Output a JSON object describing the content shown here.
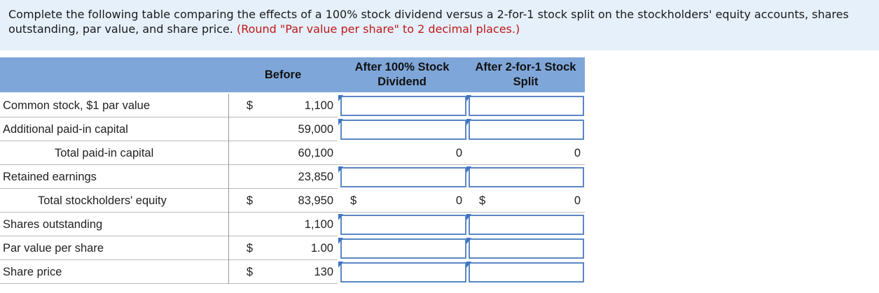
{
  "prompt": {
    "text": "Complete the following table comparing the effects of a 100% stock dividend versus a 2-for-1 stock split on the stockholders' equity accounts, shares outstanding, par value, and share price.",
    "note": "(Round \"Par value per share\" to 2 decimal places.)"
  },
  "table": {
    "headers": {
      "before": "Before",
      "stock_dividend": "After 100% Stock Dividend",
      "stock_split": "After 2-for-1 Stock Split"
    },
    "rows": [
      {
        "label": "Common stock, $1 par value",
        "dollar": "$",
        "before": "1,100"
      },
      {
        "label": "Additional paid-in capital",
        "dollar": "",
        "before": "59,000"
      },
      {
        "label": "Total paid-in capital",
        "dollar": "",
        "before": "60,100",
        "dividend_value": "0",
        "split_value": "0"
      },
      {
        "label": "Retained earnings",
        "dollar": "",
        "before": "23,850"
      },
      {
        "label": "Total stockholders' equity",
        "dollar": "$",
        "before": "83,950",
        "dividend_dollar": "$",
        "dividend_value": "0",
        "split_dollar": "$",
        "split_value": "0"
      },
      {
        "label": "Shares outstanding",
        "dollar": "",
        "before": "1,100"
      },
      {
        "label": "Par value per share",
        "dollar": "$",
        "before": "1.00"
      },
      {
        "label": "Share price",
        "dollar": "$",
        "before": "130"
      }
    ]
  },
  "colors": {
    "prompt_bg": "#e5f0fa",
    "header_bg": "#7fa6d8",
    "input_border": "#5b87c2",
    "note_red": "#c01818"
  }
}
